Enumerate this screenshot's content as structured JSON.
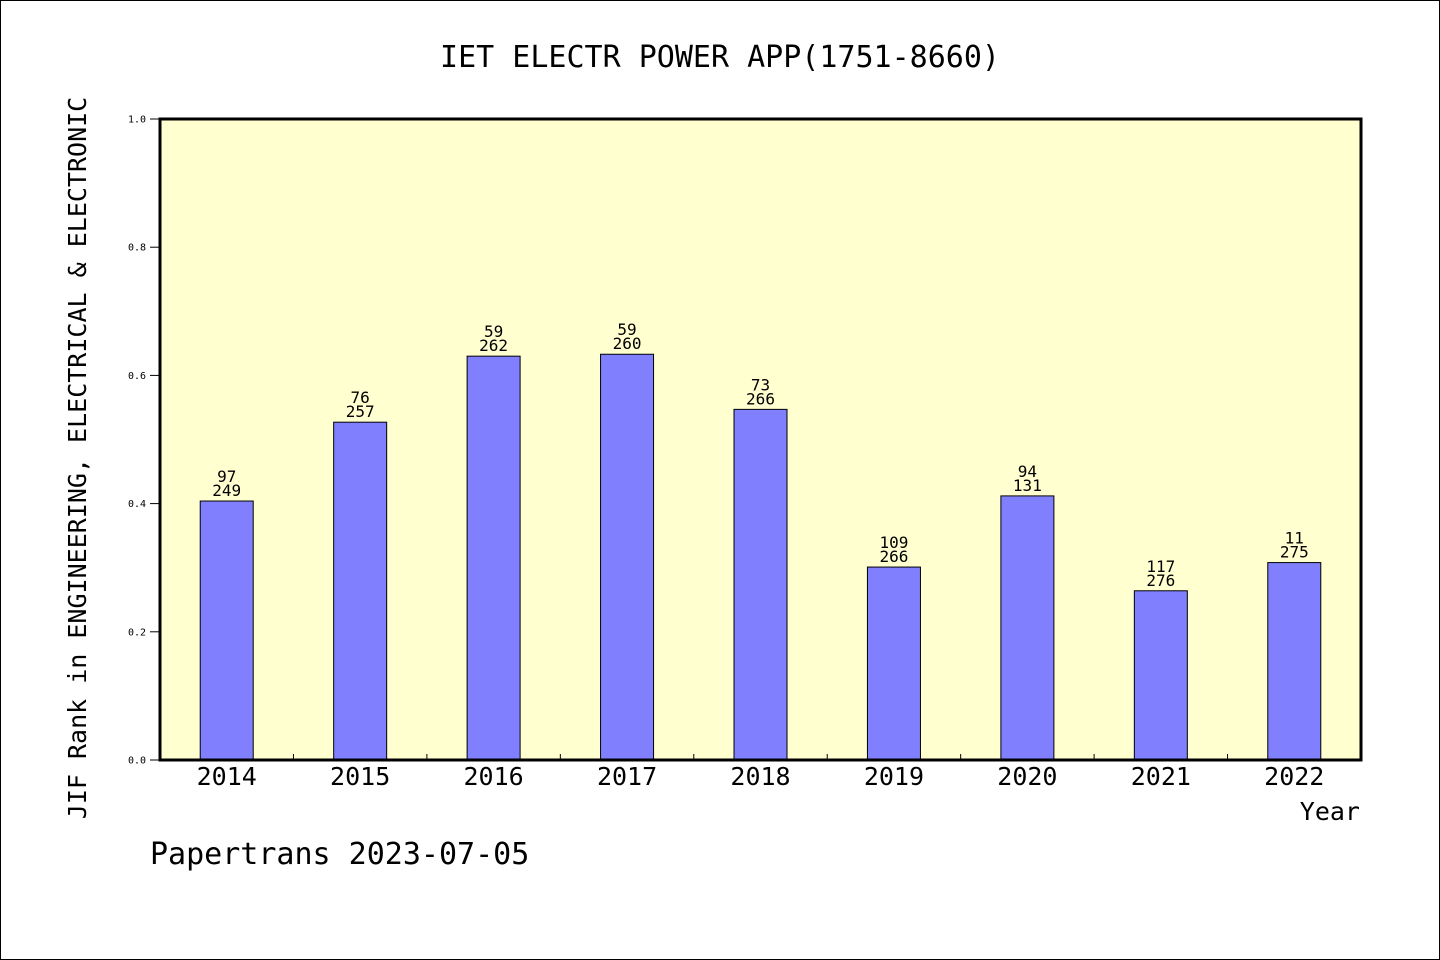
{
  "chart_data": {
    "type": "bar",
    "title": "IET ELECTR POWER APP(1751-8660)",
    "xlabel": "Year",
    "ylabel": "JIF Rank in ENGINEERING, ELECTRICAL & ELECTRONIC",
    "ylim": [
      0,
      1.0
    ],
    "yticks": [
      "0.0",
      "0.2",
      "0.4",
      "0.6",
      "0.8",
      "1.0"
    ],
    "grid": false,
    "categories": [
      "2014",
      "2015",
      "2016",
      "2017",
      "2018",
      "2019",
      "2020",
      "2021",
      "2022"
    ],
    "values": [
      0.404,
      0.527,
      0.63,
      0.633,
      0.547,
      0.301,
      0.412,
      0.264,
      0.308
    ],
    "rank_labels": [
      "97",
      "76",
      "59",
      "59",
      "73",
      "109",
      "94",
      "117",
      "11"
    ],
    "total_labels": [
      "249",
      "257",
      "262",
      "260",
      "266",
      "266",
      "131",
      "276",
      "275"
    ],
    "colors": {
      "bar": "#8080ff",
      "plot_background": "#ffffd0",
      "axis": "#000000"
    }
  },
  "footer": {
    "credit": "Papertrans 2023-07-05"
  }
}
